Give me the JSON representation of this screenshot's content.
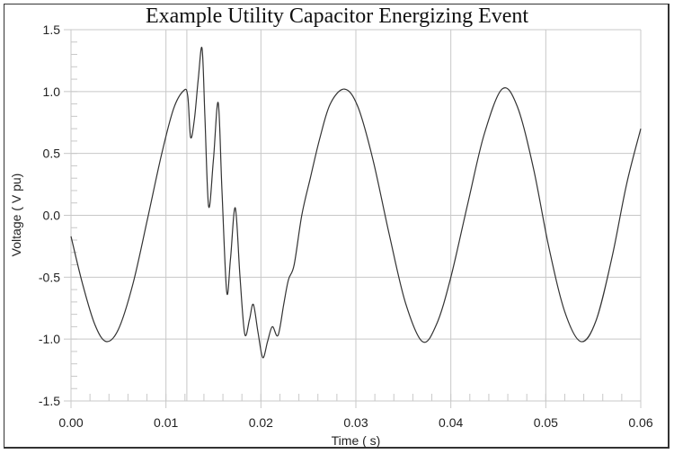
{
  "chart_data": {
    "type": "line",
    "title": "Example Utility Capacitor Energizing Event",
    "xlabel": "Time ( s)",
    "ylabel": "Voltage ( V pu)",
    "xlim": [
      0.0,
      0.06
    ],
    "ylim": [
      -1.5,
      1.5
    ],
    "x_ticks": [
      "0.00",
      "0.01",
      "0.02",
      "0.03",
      "0.04",
      "0.05",
      "0.06"
    ],
    "y_ticks": [
      "1.5",
      "1.0",
      "0.5",
      "0.0",
      "-0.5",
      "-1.0",
      "-1.5"
    ],
    "grid": true,
    "legend": null,
    "annotations": [
      "extra vertical gridline at switching instant ~0.0122 s"
    ],
    "series": [
      {
        "name": "Voltage",
        "color": "#333333",
        "x": [
          0.0,
          0.0012,
          0.0025,
          0.0037,
          0.005,
          0.0065,
          0.008,
          0.0095,
          0.0108,
          0.0119,
          0.0123,
          0.0126,
          0.013,
          0.0134,
          0.0138,
          0.0141,
          0.0145,
          0.015,
          0.0155,
          0.0159,
          0.0164,
          0.0168,
          0.0173,
          0.0178,
          0.0183,
          0.0188,
          0.0192,
          0.0197,
          0.0202,
          0.0207,
          0.0212,
          0.0218,
          0.0224,
          0.0229,
          0.0235,
          0.0243,
          0.0252,
          0.0262,
          0.0273,
          0.0288,
          0.0302,
          0.0318,
          0.0335,
          0.0352,
          0.037,
          0.0385,
          0.04,
          0.0418,
          0.0435,
          0.0454,
          0.047,
          0.0487,
          0.0503,
          0.052,
          0.0537,
          0.0553,
          0.057,
          0.0585,
          0.06
        ],
        "values": [
          -0.17,
          -0.55,
          -0.88,
          -1.02,
          -0.92,
          -0.56,
          -0.05,
          0.48,
          0.86,
          1.01,
          0.96,
          0.63,
          0.78,
          1.1,
          1.35,
          0.8,
          0.07,
          0.45,
          0.91,
          0.2,
          -0.62,
          -0.35,
          0.06,
          -0.5,
          -0.96,
          -0.84,
          -0.72,
          -0.95,
          -1.15,
          -1.02,
          -0.9,
          -0.97,
          -0.72,
          -0.52,
          -0.4,
          0.0,
          0.3,
          0.62,
          0.9,
          1.02,
          0.88,
          0.45,
          -0.15,
          -0.7,
          -1.02,
          -0.88,
          -0.5,
          0.1,
          0.65,
          1.02,
          0.88,
          0.38,
          -0.25,
          -0.78,
          -1.02,
          -0.85,
          -0.33,
          0.25,
          0.7
        ]
      }
    ]
  }
}
